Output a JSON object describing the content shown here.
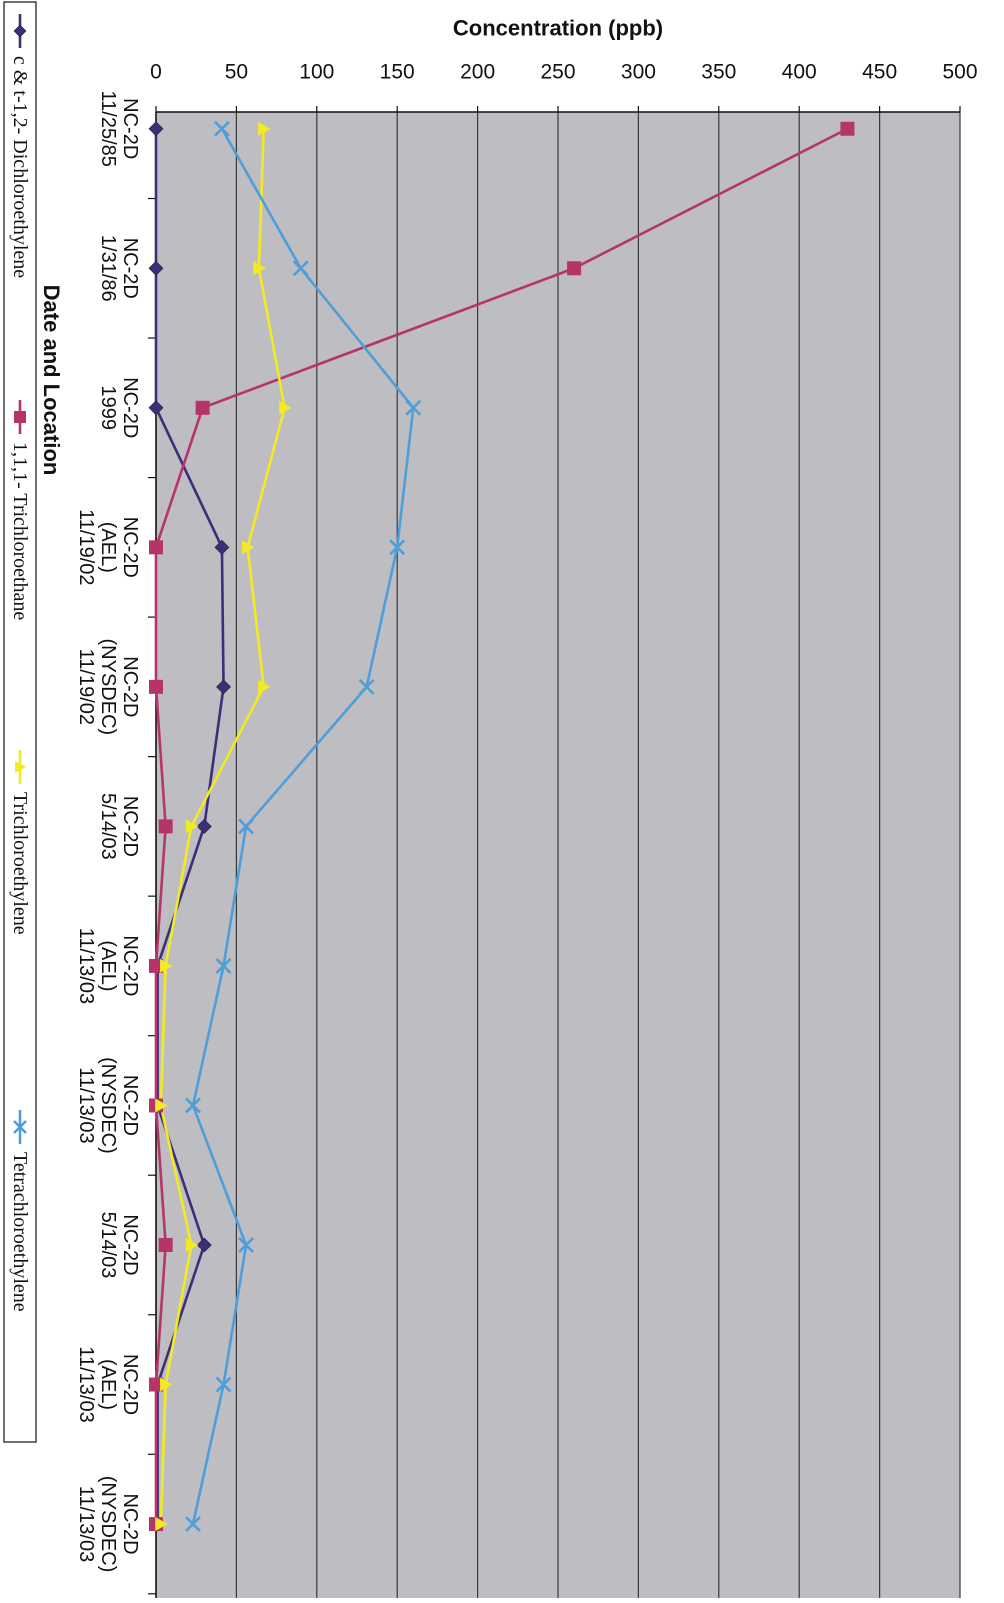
{
  "chart_data": {
    "type": "line",
    "title": "",
    "xlabel": "Date and Location",
    "ylabel": "Concentration (ppb)",
    "ylim": [
      0,
      500
    ],
    "yticks": [
      0,
      50,
      100,
      150,
      200,
      250,
      300,
      350,
      400,
      450,
      500
    ],
    "orientation": "rotated-90-clockwise",
    "grid": true,
    "legend_position": "bottom",
    "categories": [
      [
        "NC-2D",
        "11/25/85"
      ],
      [
        "NC-2D",
        "1/31/86"
      ],
      [
        "NC-2D",
        "1999"
      ],
      [
        "NC-2D",
        "(AEL)",
        "11/19/02"
      ],
      [
        "NC-2D",
        "(NYSDEC)",
        "11/19/02"
      ],
      [
        "NC-2D",
        "5/14/03"
      ],
      [
        "NC-2D",
        "(AEL)",
        "11/13/03"
      ],
      [
        "NC-2D",
        "(NYSDEC)",
        "11/13/03"
      ],
      [
        "NC-2D",
        "5/14/03"
      ],
      [
        "NC-2D",
        "(AEL)",
        "11/13/03"
      ],
      [
        "NC-2D",
        "(NYSDEC)",
        "11/13/03"
      ]
    ],
    "series": [
      {
        "name": "c & t-1,2- Dichloroethylene",
        "color": "#3b2f7a",
        "marker": "diamond",
        "values": [
          0,
          0,
          0,
          41,
          42,
          30,
          1,
          1,
          30,
          1,
          1
        ]
      },
      {
        "name": "1,1,1- Trichloroethane",
        "color": "#b5356b",
        "marker": "square",
        "values": [
          430,
          260,
          29,
          0,
          0,
          6,
          0,
          0,
          6,
          0,
          0
        ]
      },
      {
        "name": "Trichloroethylene",
        "color": "#f2ea22",
        "marker": "triangle",
        "values": [
          67,
          64,
          80,
          57,
          67,
          22,
          6,
          3,
          22,
          6,
          3
        ]
      },
      {
        "name": "Tetrachloroethylene",
        "color": "#4d9ed9",
        "marker": "x",
        "values": [
          41,
          90,
          160,
          150,
          131,
          56,
          42,
          23,
          56,
          42,
          23
        ]
      }
    ]
  },
  "style": {
    "plot_bg": "#bdbdc2",
    "gridline": "#3a3a3a",
    "axis": "#111111"
  }
}
